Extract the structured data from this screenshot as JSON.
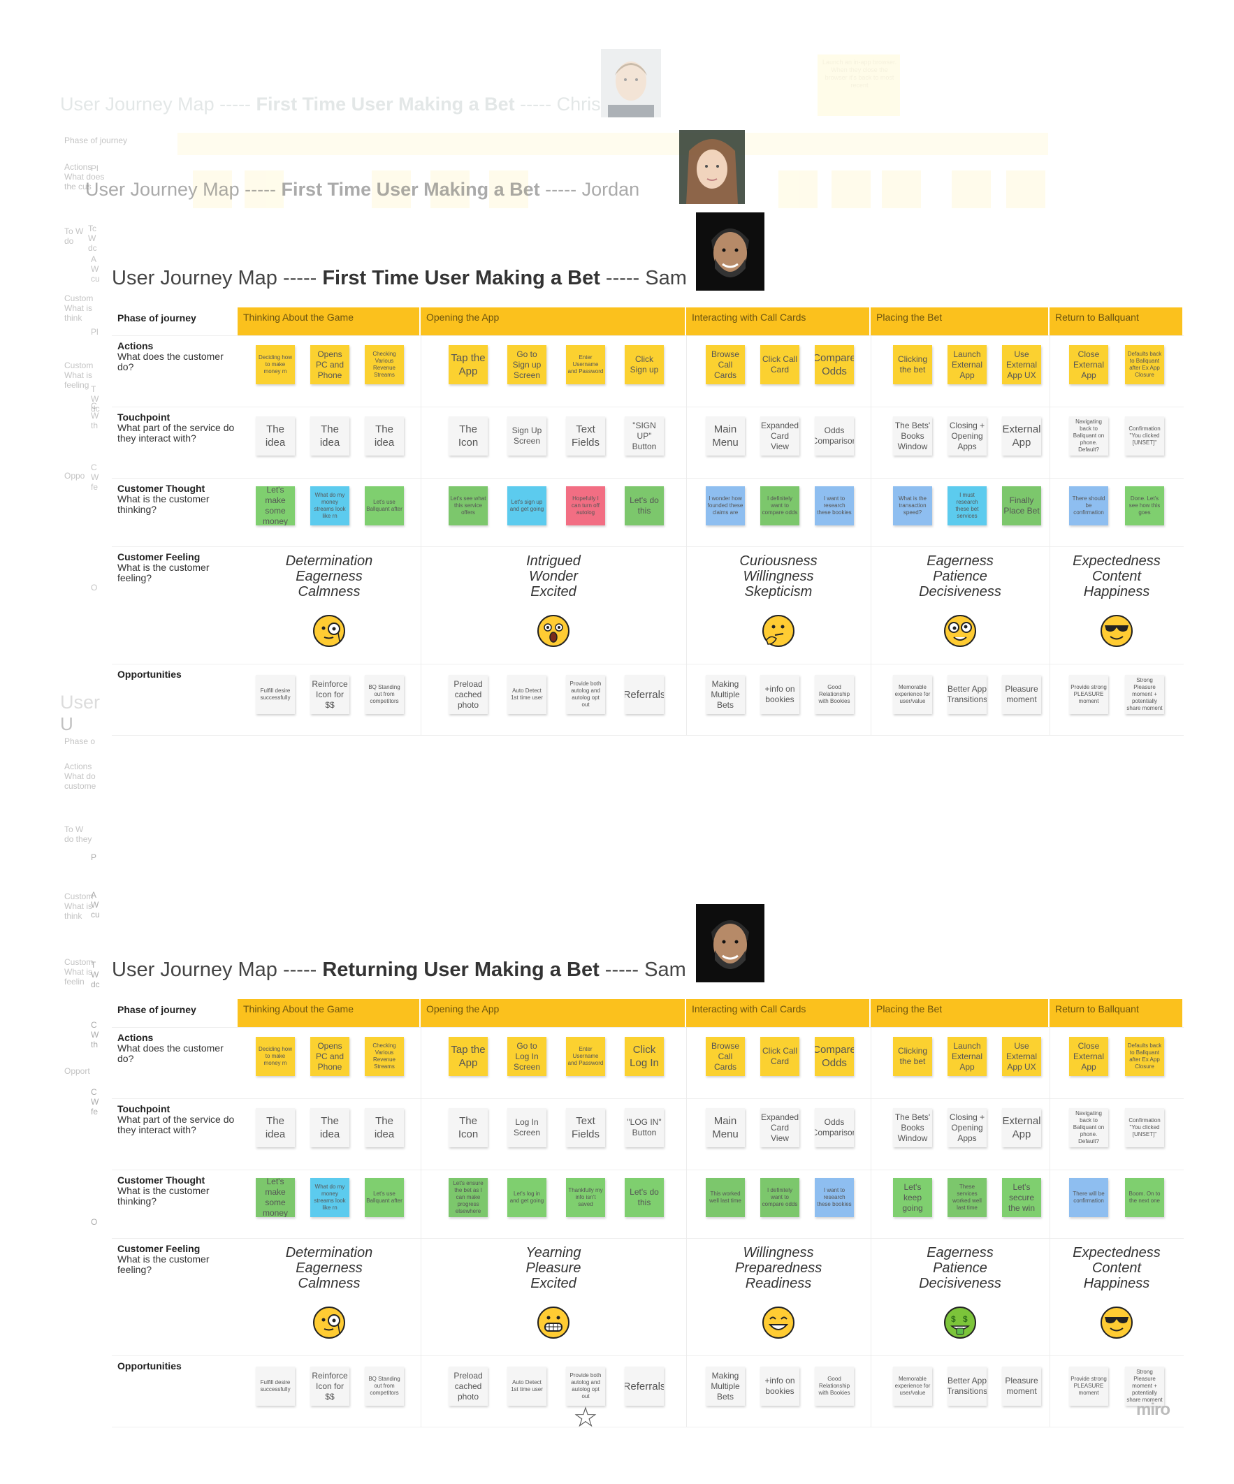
{
  "ghost_titles": {
    "chris": {
      "prefix": "User Journey Map ----- ",
      "bold": "First Time User Making a Bet",
      "suffix": " ----- Chris"
    },
    "jordan": {
      "prefix": "User Journey Map ----- ",
      "bold": "First Time User Making a Bet",
      "suffix": " ----- Jordan"
    },
    "ghost_user": "User",
    "ghost_u": "U"
  },
  "ghost_note_text": "Launch an in-app browser. When they close the browser it's back to most recent",
  "maps": [
    {
      "title": {
        "prefix": "User Journey Map ----- ",
        "bold": "First Time User Making a Bet",
        "suffix": " ----- Sam"
      },
      "row_labels": {
        "phase": {
          "t": "Phase of journey",
          "d": ""
        },
        "actions": {
          "t": "Actions",
          "d": "What does the customer do?"
        },
        "touchpoint": {
          "t": "Touchpoint",
          "d": "What part of the service do they interact with?"
        },
        "thought": {
          "t": "Customer Thought",
          "d": "What is the customer thinking?"
        },
        "feeling": {
          "t": "Customer Feeling",
          "d": "What is the customer feeling?"
        },
        "opportunities": {
          "t": "Opportunities",
          "d": ""
        }
      },
      "phases": [
        "Thinking About the Game",
        "Opening the App",
        "Interacting with Call Cards",
        "Placing the Bet",
        "Return to Ballquant"
      ],
      "actions": [
        "Deciding how to make money m",
        "Opens PC and Phone",
        "Checking Various Revenue Streams",
        "Tap the App",
        "Go to Sign up Screen",
        "Enter Username and Password",
        "Click Sign up",
        "Browse Call Cards",
        "Click Call Card",
        "Compare Odds",
        "Clicking the bet",
        "Launch External App",
        "Use External App UX",
        "Close External App",
        "Defaults back to Ballquant after Ex App Closure"
      ],
      "touchpoints": [
        "The idea",
        "The idea",
        "The idea",
        "The Icon",
        "Sign Up Screen",
        "Text Fields",
        "\"SIGN UP\" Button",
        "Main Menu",
        "Expanded Card View",
        "Odds Comparison",
        "The Bets' Books Window",
        "Closing + Opening Apps",
        "External App",
        "Navigating back to Ballquant on phone. Default?",
        "Confirmation \"You clicked [UNSET]\""
      ],
      "thoughts": [
        "Let's make some money",
        "What do my money streams look like rn",
        "Let's use Ballquant after",
        "Let's see what this service offers",
        "Let's sign up and get going",
        "Hopefully I can turn off autolog",
        "Let's do this",
        "I wonder how founded these claims are",
        "I definitely want to compare odds",
        "I want to research these bookies",
        "What is the transaction speed?",
        "I must research these bet services",
        "Finally Place Bet",
        "There should be confirmation",
        "Done. Let's see how this goes"
      ],
      "feelings": [
        [
          "Determination",
          "Eagerness",
          "Calmness"
        ],
        [
          "Intrigued",
          "Wonder",
          "Excited"
        ],
        [
          "Curiousness",
          "Willingness",
          "Skepticism"
        ],
        [
          "Eagerness",
          "Patience",
          "Decisiveness"
        ],
        [
          "Expectedness",
          "Content",
          "Happiness"
        ]
      ],
      "emojis": [
        "face-with-monocle-icon",
        "astonished-face-icon",
        "thinking-face-icon",
        "goofy-face-icon",
        "sunglasses-face-icon"
      ],
      "opportunities": [
        "Fulfill desire successfully",
        "Reinforce Icon for $$",
        "BQ Standing out from competitors",
        "Preload cached photo",
        "Auto Detect 1st time user",
        "Provide both autolog and autolog opt out",
        "Referrals",
        "Making Multiple Bets",
        "+info on bookies",
        "Good Relationship with Bookies",
        "Memorable experience for user/value",
        "Better App Transitions",
        "Pleasure moment",
        "Provide strong PLEASURE moment",
        "Strong Pleasure moment + potentially share moment"
      ]
    },
    {
      "title": {
        "prefix": "User Journey Map ----- ",
        "bold": "Returning User Making a Bet",
        "suffix": " ----- Sam"
      },
      "row_labels": {
        "phase": {
          "t": "Phase of journey",
          "d": ""
        },
        "actions": {
          "t": "Actions",
          "d": "What does the customer do?"
        },
        "touchpoint": {
          "t": "Touchpoint",
          "d": "What part of the service do they interact with?"
        },
        "thought": {
          "t": "Customer Thought",
          "d": "What is the customer thinking?"
        },
        "feeling": {
          "t": "Customer Feeling",
          "d": "What is the customer feeling?"
        },
        "opportunities": {
          "t": "Opportunities",
          "d": ""
        }
      },
      "phases": [
        "Thinking About the Game",
        "Opening the App",
        "Interacting with Call Cards",
        "Placing the Bet",
        "Return to Ballquant"
      ],
      "actions": [
        "Deciding how to make money m",
        "Opens PC and Phone",
        "Checking Various Revenue Streams",
        "Tap the App",
        "Go to Log In Screen",
        "Enter Username and Password",
        "Click Log In",
        "Browse Call Cards",
        "Click Call Card",
        "Compare Odds",
        "Clicking the bet",
        "Launch External App",
        "Use External App UX",
        "Close External App",
        "Defaults back to Ballquant after Ex App Closure"
      ],
      "touchpoints": [
        "The idea",
        "The idea",
        "The idea",
        "The Icon",
        "Log In Screen",
        "Text Fields",
        "\"LOG IN\" Button",
        "Main Menu",
        "Expanded Card View",
        "Odds Comparison",
        "The Bets' Books Window",
        "Closing + Opening Apps",
        "External App",
        "Navigating back to Ballquant on phone. Default?",
        "Confirmation \"You clicked [UNSET]\""
      ],
      "thoughts": [
        "Let's make some money",
        "What do my money streams look like rn",
        "Let's use Ballquant after",
        "Let's ensure the bet as I can make progress elsewhere",
        "Let's log in and get going",
        "Thankfully my info isn't saved",
        "Let's do this",
        "This worked well last time",
        "I definitely want to compare odds",
        "I want to research these bookies",
        "Let's keep going",
        "These services worked well last time",
        "Let's secure the win",
        "There will be confirmation",
        "Boom. On to the next one"
      ],
      "feelings": [
        [
          "Determination",
          "Eagerness",
          "Calmness"
        ],
        [
          "Yearning",
          "Pleasure",
          "Excited"
        ],
        [
          "Willingness",
          "Preparedness",
          "Readiness"
        ],
        [
          "Eagerness",
          "Patience",
          "Decisiveness"
        ],
        [
          "Expectedness",
          "Content",
          "Happiness"
        ]
      ],
      "emojis": [
        "face-with-monocle-icon",
        "grinning-face-icon",
        "smiling-face-icon",
        "money-mouth-face-icon",
        "sunglasses-face-icon"
      ],
      "opportunities": [
        "Fulfill desire successfully",
        "Reinforce Icon for $$",
        "BQ Standing out from competitors",
        "Preload cached photo",
        "Auto Detect 1st time user",
        "Provide both autolog and autolog opt out",
        "Referrals",
        "Making Multiple Bets",
        "+info on bookies",
        "Good Relationship with Bookies",
        "Memorable experience for user/value",
        "Better App Transitions",
        "Pleasure moment",
        "Provide strong PLEASURE moment",
        "Strong Pleasure moment + potentially share moment"
      ]
    }
  ],
  "watermark": "miro",
  "colors": {
    "phase": "#fbc11d",
    "yellow": "#fbd130",
    "green": "#7fcf6f",
    "cyan": "#5ccbee",
    "blue": "#8ebef0",
    "pink": "#f26e83",
    "white": "#f5f5f5"
  }
}
